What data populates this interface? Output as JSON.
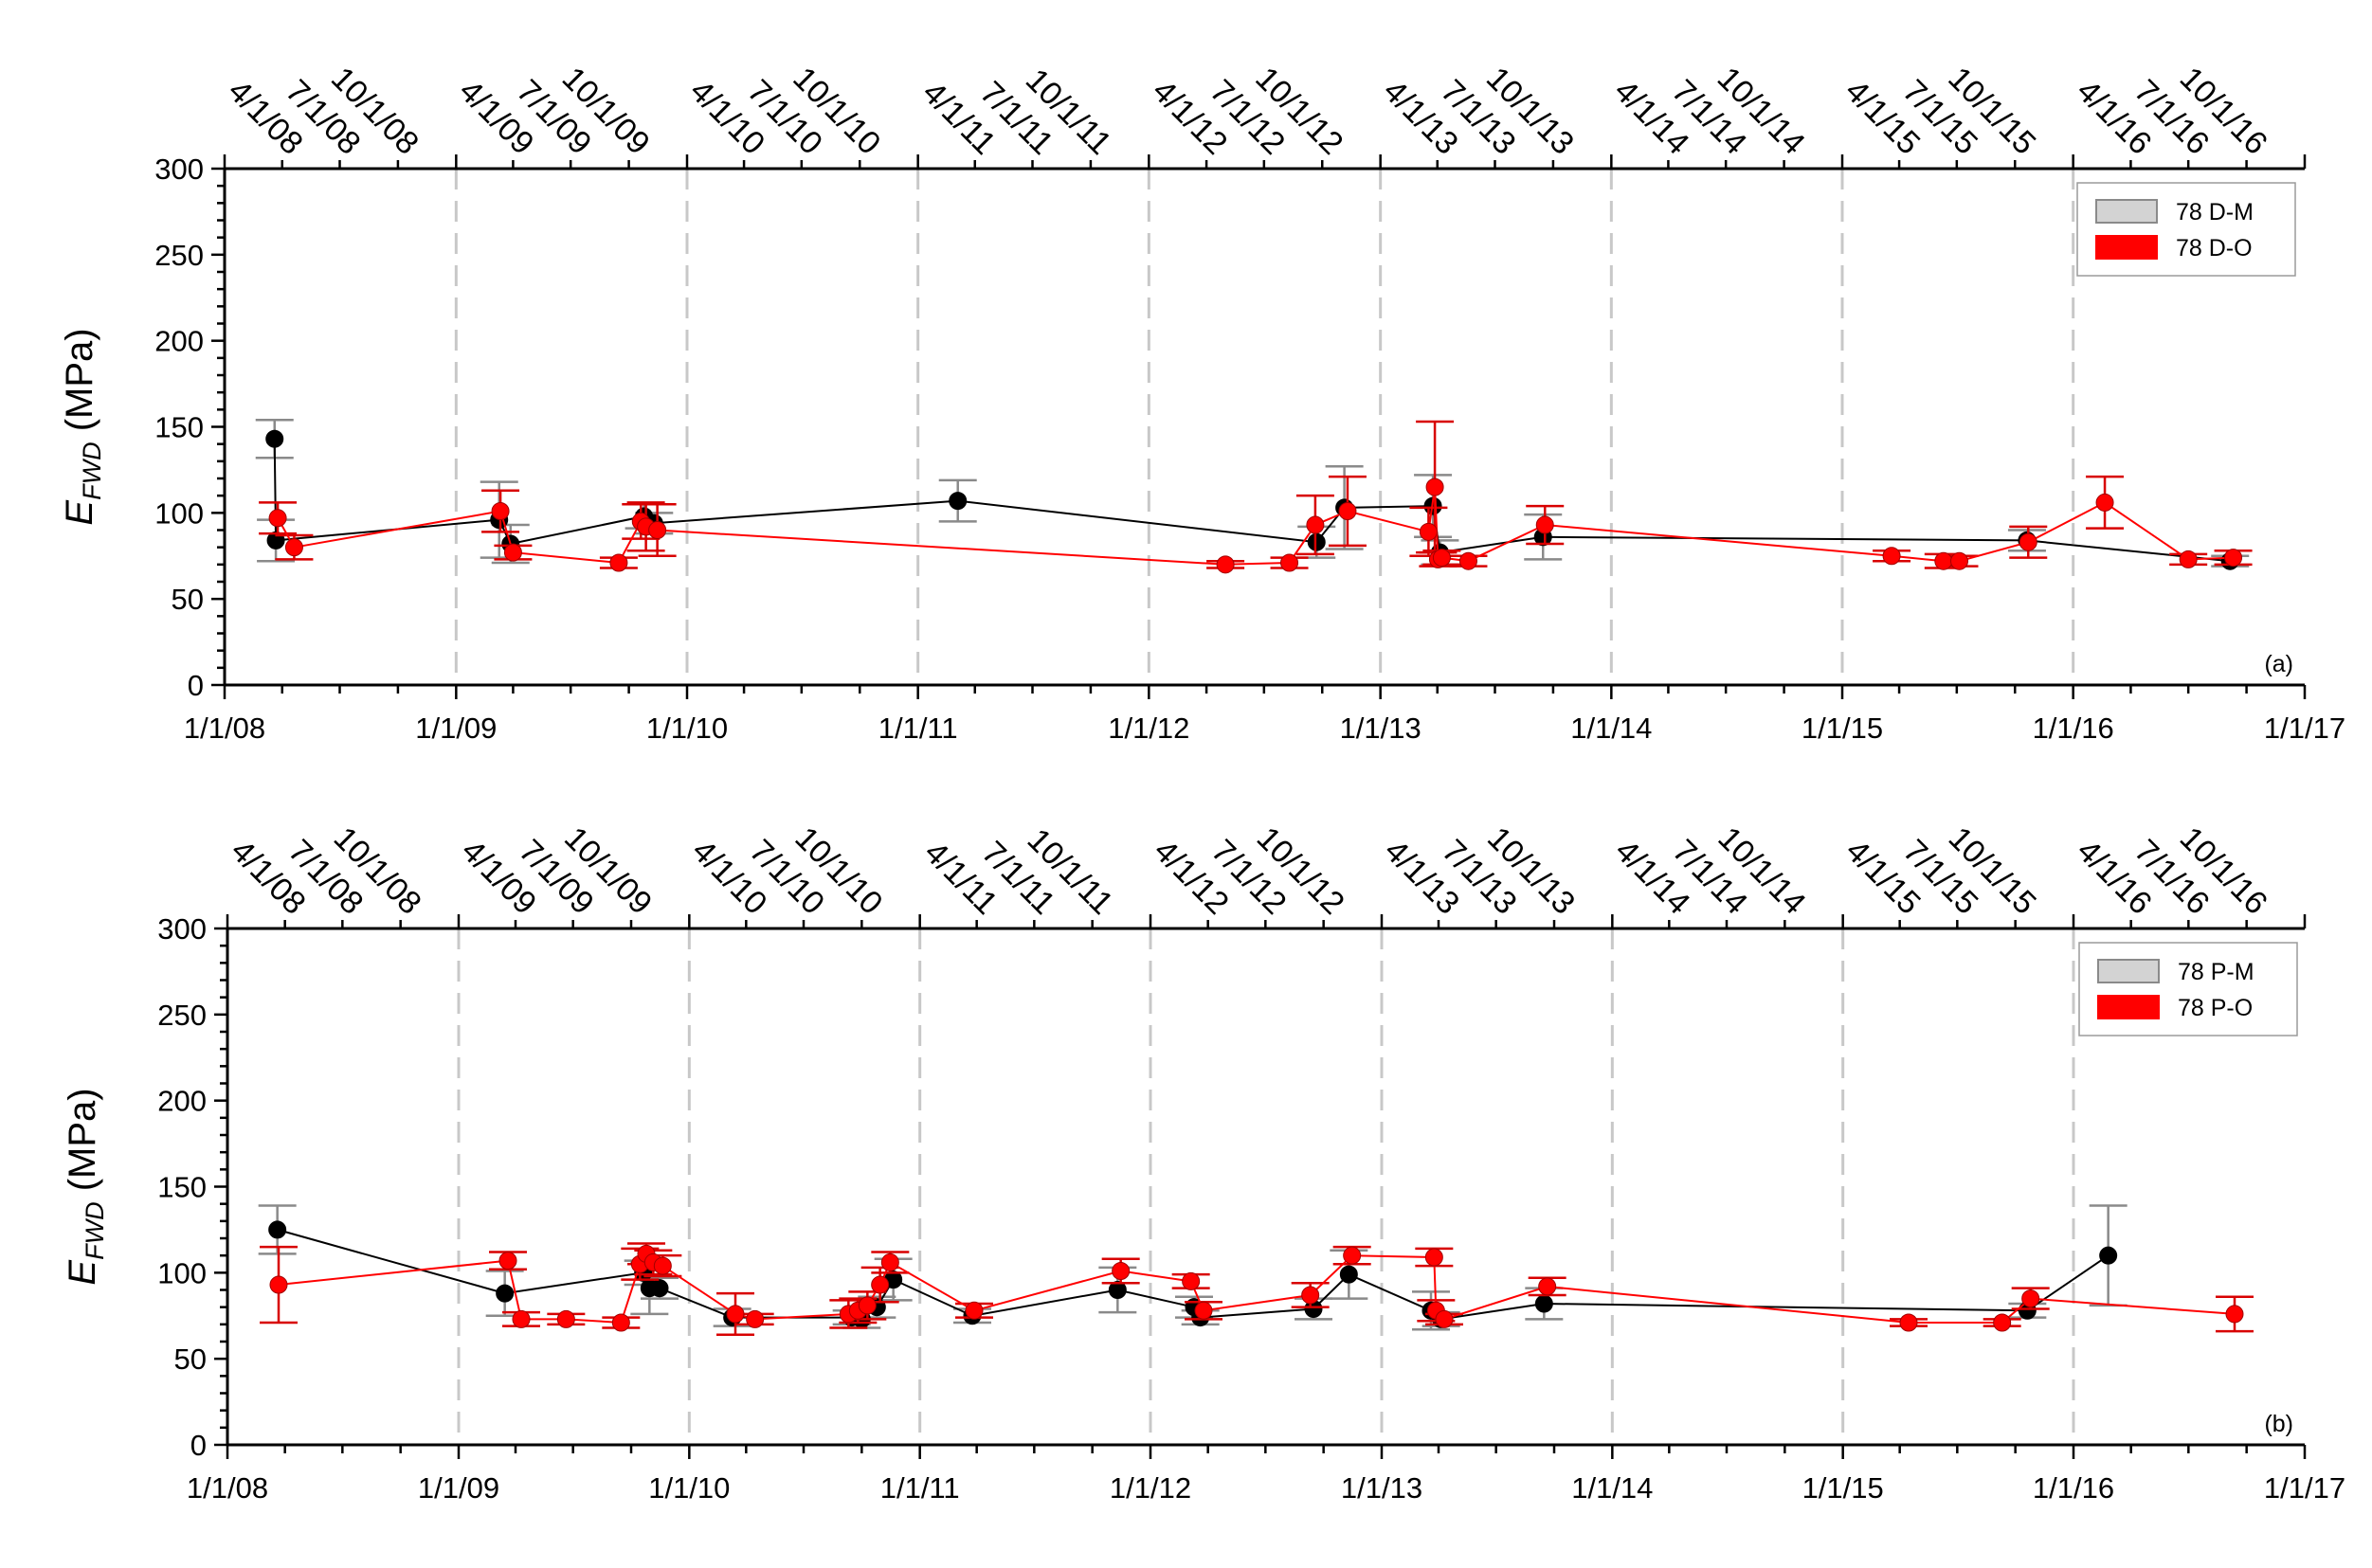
{
  "colors": {
    "model": "#000000",
    "observed": "#ff0000",
    "model_err": "#8a8a8a",
    "observed_err": "#d80000",
    "vline": "#c8c8c8"
  },
  "chart_data": [
    {
      "type": "scatter",
      "panel_label": "(a)",
      "ylabel_main": "E",
      "ylabel_sub": "FWD",
      "ylabel_unit": " (MPa)",
      "ylim": [
        0,
        300
      ],
      "yticks": [
        "0",
        "50",
        "100",
        "150",
        "200",
        "250",
        "300"
      ],
      "xlim": [
        "2008-01-01",
        "2017-01-01"
      ],
      "xticks": [
        "1/1/08",
        "1/1/09",
        "1/1/10",
        "1/1/11",
        "1/1/12",
        "1/1/13",
        "1/1/14",
        "1/1/15",
        "1/1/16",
        "1/1/17"
      ],
      "top_ticks": [
        "4/1/08",
        "7/1/08",
        "10/1/08",
        "4/1/09",
        "7/1/09",
        "10/1/09",
        "4/1/10",
        "7/1/10",
        "10/1/10",
        "4/1/11",
        "7/1/11",
        "10/1/11",
        "4/1/12",
        "7/1/12",
        "10/1/12",
        "4/1/13",
        "7/1/13",
        "10/1/13",
        "4/1/14",
        "7/1/14",
        "10/1/14",
        "4/1/15",
        "7/1/15",
        "10/1/15",
        "4/1/16",
        "7/1/16",
        "10/1/16"
      ],
      "legend": [
        "78 D-M",
        "78 D-O"
      ],
      "series": [
        {
          "name": "78 D-M",
          "points": [
            {
              "x": "2008-03-20",
              "y": 143,
              "err": 11
            },
            {
              "x": "2008-03-22",
              "y": 84,
              "err": 12
            },
            {
              "x": "2009-03-10",
              "y": 96,
              "err": 22
            },
            {
              "x": "2009-03-28",
              "y": 82,
              "err": 11
            },
            {
              "x": "2009-10-25",
              "y": 98,
              "err": 7
            },
            {
              "x": "2009-11-10",
              "y": 94,
              "err": 6
            },
            {
              "x": "2011-03-05",
              "y": 107,
              "err": 12
            },
            {
              "x": "2012-09-22",
              "y": 83,
              "err": 9
            },
            {
              "x": "2012-11-05",
              "y": 103,
              "err": 24
            },
            {
              "x": "2013-03-25",
              "y": 104,
              "err": 18
            },
            {
              "x": "2013-04-05",
              "y": 77,
              "err": 7
            },
            {
              "x": "2013-09-15",
              "y": 86,
              "err": 13
            },
            {
              "x": "2015-10-20",
              "y": 84,
              "err": 6
            },
            {
              "x": "2016-09-05",
              "y": 72,
              "err": 3
            }
          ]
        },
        {
          "name": "78 D-O",
          "points": [
            {
              "x": "2008-03-25",
              "y": 97,
              "err": 9
            },
            {
              "x": "2008-04-20",
              "y": 80,
              "err": 7
            },
            {
              "x": "2009-03-12",
              "y": 101,
              "err": 12
            },
            {
              "x": "2009-04-01",
              "y": 77,
              "err": 4
            },
            {
              "x": "2009-09-15",
              "y": 71,
              "err": 3
            },
            {
              "x": "2009-10-20",
              "y": 95,
              "err": 10
            },
            {
              "x": "2009-10-28",
              "y": 92,
              "err": 14
            },
            {
              "x": "2009-11-15",
              "y": 90,
              "err": 15
            },
            {
              "x": "2012-05-01",
              "y": 70,
              "err": 2
            },
            {
              "x": "2012-08-10",
              "y": 71,
              "err": 3
            },
            {
              "x": "2012-09-20",
              "y": 93,
              "err": 17
            },
            {
              "x": "2012-11-10",
              "y": 101,
              "err": 20
            },
            {
              "x": "2013-03-18",
              "y": 89,
              "err": 14
            },
            {
              "x": "2013-03-28",
              "y": 115,
              "err": 38
            },
            {
              "x": "2013-04-02",
              "y": 73,
              "err": 4
            },
            {
              "x": "2013-04-08",
              "y": 74,
              "err": 4
            },
            {
              "x": "2013-05-20",
              "y": 72,
              "err": 3
            },
            {
              "x": "2013-09-18",
              "y": 93,
              "err": 11
            },
            {
              "x": "2015-03-20",
              "y": 75,
              "err": 3
            },
            {
              "x": "2015-06-10",
              "y": 72,
              "err": 4
            },
            {
              "x": "2015-07-05",
              "y": 72,
              "err": 3
            },
            {
              "x": "2015-10-22",
              "y": 83,
              "err": 9
            },
            {
              "x": "2016-02-20",
              "y": 106,
              "err": 15
            },
            {
              "x": "2016-07-01",
              "y": 73,
              "err": 3
            },
            {
              "x": "2016-09-10",
              "y": 74,
              "err": 4
            }
          ]
        }
      ]
    },
    {
      "type": "scatter",
      "panel_label": "(b)",
      "ylabel_main": "E",
      "ylabel_sub": "FWD",
      "ylabel_unit": " (MPa)",
      "ylim": [
        0,
        300
      ],
      "yticks": [
        "0",
        "50",
        "100",
        "150",
        "200",
        "250",
        "300"
      ],
      "xlim": [
        "2008-01-01",
        "2017-01-01"
      ],
      "xticks": [
        "1/1/08",
        "1/1/09",
        "1/1/10",
        "1/1/11",
        "1/1/12",
        "1/1/13",
        "1/1/14",
        "1/1/15",
        "1/1/16",
        "1/1/17"
      ],
      "top_ticks": [
        "4/1/08",
        "7/1/08",
        "10/1/08",
        "4/1/09",
        "7/1/09",
        "10/1/09",
        "4/1/10",
        "7/1/10",
        "10/1/10",
        "4/1/11",
        "7/1/11",
        "10/1/11",
        "4/1/12",
        "7/1/12",
        "10/1/12",
        "4/1/13",
        "7/1/13",
        "10/1/13",
        "4/1/14",
        "7/1/14",
        "10/1/14",
        "4/1/15",
        "7/1/15",
        "10/1/15",
        "4/1/16",
        "7/1/16",
        "10/1/16"
      ],
      "legend": [
        "78 P-M",
        "78 P-O"
      ],
      "series": [
        {
          "name": "78 P-M",
          "points": [
            {
              "x": "2008-03-20",
              "y": 125,
              "err": 14
            },
            {
              "x": "2009-03-15",
              "y": 88,
              "err": 13
            },
            {
              "x": "2009-10-20",
              "y": 100,
              "err": 7
            },
            {
              "x": "2009-10-30",
              "y": 91,
              "err": 15
            },
            {
              "x": "2009-11-15",
              "y": 91,
              "err": 6
            },
            {
              "x": "2010-03-10",
              "y": 74,
              "err": 5
            },
            {
              "x": "2010-09-15",
              "y": 74,
              "err": 4
            },
            {
              "x": "2010-10-01",
              "y": 73,
              "err": 5
            },
            {
              "x": "2010-10-25",
              "y": 80,
              "err": 6
            },
            {
              "x": "2010-11-20",
              "y": 96,
              "err": 12
            },
            {
              "x": "2011-03-25",
              "y": 75,
              "err": 4
            },
            {
              "x": "2011-11-10",
              "y": 90,
              "err": 13
            },
            {
              "x": "2012-03-10",
              "y": 80,
              "err": 6
            },
            {
              "x": "2012-03-20",
              "y": 74,
              "err": 4
            },
            {
              "x": "2012-09-15",
              "y": 79,
              "err": 6
            },
            {
              "x": "2012-11-10",
              "y": 99,
              "err": 14
            },
            {
              "x": "2013-03-20",
              "y": 78,
              "err": 11
            },
            {
              "x": "2013-04-05",
              "y": 73,
              "err": 4
            },
            {
              "x": "2013-09-15",
              "y": 82,
              "err": 9
            },
            {
              "x": "2015-10-20",
              "y": 78,
              "err": 4
            },
            {
              "x": "2016-02-25",
              "y": 110,
              "err": 29
            }
          ]
        },
        {
          "name": "78 P-O",
          "points": [
            {
              "x": "2008-03-22",
              "y": 93,
              "err": 22
            },
            {
              "x": "2009-03-20",
              "y": 107,
              "err": 5
            },
            {
              "x": "2009-04-10",
              "y": 73,
              "err": 4
            },
            {
              "x": "2009-06-20",
              "y": 73,
              "err": 3
            },
            {
              "x": "2009-09-15",
              "y": 71,
              "err": 3
            },
            {
              "x": "2009-10-15",
              "y": 105,
              "err": 9
            },
            {
              "x": "2009-10-25",
              "y": 111,
              "err": 6
            },
            {
              "x": "2009-11-05",
              "y": 106,
              "err": 7
            },
            {
              "x": "2009-11-20",
              "y": 104,
              "err": 6
            },
            {
              "x": "2010-03-15",
              "y": 76,
              "err": 12
            },
            {
              "x": "2010-04-15",
              "y": 73,
              "err": 3
            },
            {
              "x": "2010-09-10",
              "y": 76,
              "err": 8
            },
            {
              "x": "2010-09-25",
              "y": 78,
              "err": 7
            },
            {
              "x": "2010-10-10",
              "y": 81,
              "err": 8
            },
            {
              "x": "2010-10-30",
              "y": 93,
              "err": 10
            },
            {
              "x": "2010-11-15",
              "y": 106,
              "err": 6
            },
            {
              "x": "2011-03-28",
              "y": 78,
              "err": 4
            },
            {
              "x": "2011-11-15",
              "y": 101,
              "err": 7
            },
            {
              "x": "2012-03-05",
              "y": 95,
              "err": 4
            },
            {
              "x": "2012-03-25",
              "y": 78,
              "err": 5
            },
            {
              "x": "2012-09-10",
              "y": 87,
              "err": 7
            },
            {
              "x": "2012-11-15",
              "y": 110,
              "err": 5
            },
            {
              "x": "2013-03-25",
              "y": 109,
              "err": 5
            },
            {
              "x": "2013-03-28",
              "y": 78,
              "err": 6
            },
            {
              "x": "2013-04-10",
              "y": 73,
              "err": 3
            },
            {
              "x": "2013-09-20",
              "y": 92,
              "err": 5
            },
            {
              "x": "2015-04-15",
              "y": 71,
              "err": 2
            },
            {
              "x": "2015-09-10",
              "y": 71,
              "err": 2
            },
            {
              "x": "2015-10-25",
              "y": 85,
              "err": 6
            },
            {
              "x": "2016-09-12",
              "y": 76,
              "err": 10
            }
          ]
        }
      ]
    }
  ]
}
